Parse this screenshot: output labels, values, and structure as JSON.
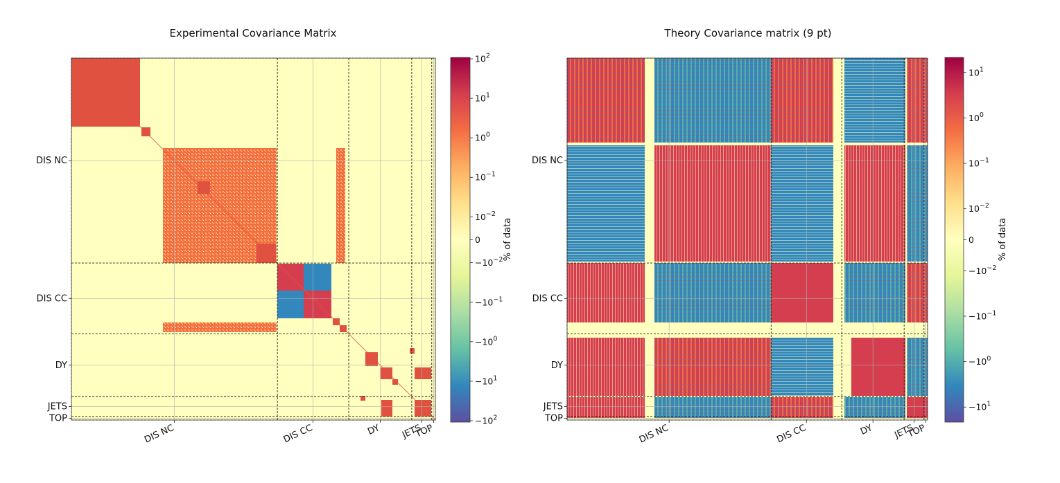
{
  "chart_data": [
    {
      "type": "heatmap",
      "title": "Experimental Covariance Matrix",
      "groups": [
        "DIS NC",
        "DIS CC",
        "DY",
        "JETS",
        "TOP"
      ],
      "group_boundaries_fraction": [
        0.0,
        0.566,
        0.762,
        0.935,
        0.99,
        1.0
      ],
      "colorbar": {
        "label": "% of data",
        "scale": "symlog",
        "range": [
          -100,
          100
        ],
        "ticks": [
          "10^{2}",
          "10^{1}",
          "10^{0}",
          "10^{-1}",
          "10^{-2}",
          "0",
          "-10^{-2}",
          "-10^{-1}",
          "-10^{0}",
          "-10^{1}",
          "-10^{2}"
        ],
        "tick_values": [
          100,
          10,
          1,
          0.1,
          0.01,
          0,
          -0.01,
          -0.1,
          -1,
          -10,
          -100
        ],
        "colormap": "Spectral_r"
      },
      "structure": "block-diagonal: mostly zero (pale yellow) with positive (red/orange) diagonal blocks; negative (blue) off-diagonal block inside DIS CC"
    },
    {
      "type": "heatmap",
      "title": "Theory Covariance matrix (9 pt)",
      "groups": [
        "DIS NC",
        "DIS CC",
        "DY",
        "JETS",
        "TOP"
      ],
      "group_boundaries_fraction": [
        0.0,
        0.566,
        0.762,
        0.935,
        0.99,
        1.0
      ],
      "colorbar": {
        "label": "% of data",
        "scale": "symlog",
        "range": [
          -20,
          20
        ],
        "ticks": [
          "10^{1}",
          "10^{0}",
          "10^{-1}",
          "10^{-2}",
          "0",
          "-10^{-2}",
          "-10^{-1}",
          "-10^{0}",
          "-10^{1}"
        ],
        "tick_values": [
          10,
          1,
          0.1,
          0.01,
          0,
          -0.01,
          -0.1,
          -1,
          -10
        ],
        "colormap": "Spectral_r"
      },
      "structure": "dense: mixture of positive (red) and negative (blue) correlations across all blocks"
    }
  ]
}
